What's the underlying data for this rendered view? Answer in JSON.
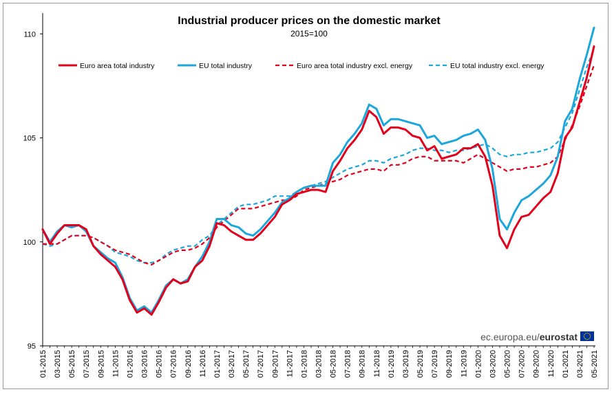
{
  "chart_data": {
    "type": "line",
    "title": "Industrial producer prices on the domestic market",
    "subtitle": "2015=100",
    "ylim": [
      95,
      111
    ],
    "yticks": [
      95,
      100,
      105,
      110
    ],
    "xtick_labels": [
      "01-2015",
      "03-2015",
      "05-2015",
      "07-2015",
      "09-2015",
      "11-2015",
      "01-2016",
      "03-2016",
      "05-2016",
      "07-2016",
      "09-2016",
      "11-2016",
      "01-2017",
      "03-2017",
      "05-2017",
      "07-2017",
      "09-2017",
      "11-2017",
      "01-2018",
      "03-2018",
      "05-2018",
      "07-2018",
      "09-2018",
      "11-2018",
      "01-2019",
      "03-2019",
      "05-2019",
      "07-2019",
      "09-2019",
      "11-2019",
      "01-2020",
      "03-2020",
      "05-2020",
      "07-2020",
      "09-2020",
      "11-2020",
      "01-2021",
      "03-2021",
      "05-2021"
    ],
    "x": [
      "01-2015",
      "02-2015",
      "03-2015",
      "04-2015",
      "05-2015",
      "06-2015",
      "07-2015",
      "08-2015",
      "09-2015",
      "10-2015",
      "11-2015",
      "12-2015",
      "01-2016",
      "02-2016",
      "03-2016",
      "04-2016",
      "05-2016",
      "06-2016",
      "07-2016",
      "08-2016",
      "09-2016",
      "10-2016",
      "11-2016",
      "12-2016",
      "01-2017",
      "02-2017",
      "03-2017",
      "04-2017",
      "05-2017",
      "06-2017",
      "07-2017",
      "08-2017",
      "09-2017",
      "10-2017",
      "11-2017",
      "12-2017",
      "01-2018",
      "02-2018",
      "03-2018",
      "04-2018",
      "05-2018",
      "06-2018",
      "07-2018",
      "08-2018",
      "09-2018",
      "10-2018",
      "11-2018",
      "12-2018",
      "01-2019",
      "02-2019",
      "03-2019",
      "04-2019",
      "05-2019",
      "06-2019",
      "07-2019",
      "08-2019",
      "09-2019",
      "10-2019",
      "11-2019",
      "12-2019",
      "01-2020",
      "02-2020",
      "03-2020",
      "04-2020",
      "05-2020",
      "06-2020",
      "07-2020",
      "08-2020",
      "09-2020",
      "10-2020",
      "11-2020",
      "12-2020",
      "01-2021",
      "02-2021",
      "03-2021",
      "04-2021",
      "05-2021"
    ],
    "grid": false,
    "legend_position": "top",
    "series": [
      {
        "name": "Euro area total industry",
        "color": "#e2001a",
        "style": "solid",
        "values": [
          100.6,
          99.9,
          100.4,
          100.8,
          100.8,
          100.8,
          100.6,
          99.8,
          99.4,
          99.1,
          98.8,
          98.2,
          97.2,
          96.6,
          96.8,
          96.5,
          97.1,
          97.8,
          98.2,
          98.0,
          98.1,
          98.8,
          99.1,
          99.8,
          100.9,
          100.8,
          100.5,
          100.3,
          100.1,
          100.1,
          100.4,
          100.8,
          101.2,
          101.8,
          102.0,
          102.3,
          102.4,
          102.5,
          102.5,
          102.4,
          103.4,
          103.9,
          104.5,
          104.9,
          105.4,
          106.3,
          106.0,
          105.2,
          105.5,
          105.5,
          105.4,
          105.1,
          105.0,
          104.4,
          104.6,
          104.0,
          104.1,
          104.2,
          104.5,
          104.5,
          104.7,
          104.1,
          102.7,
          100.3,
          99.7,
          100.6,
          101.2,
          101.3,
          101.7,
          102.1,
          102.4,
          103.3,
          105.0,
          105.5,
          106.7,
          107.9,
          109.4
        ]
      },
      {
        "name": "EU total industry",
        "color": "#1ba6dc",
        "style": "solid",
        "values": [
          100.6,
          100.0,
          100.5,
          100.8,
          100.7,
          100.8,
          100.5,
          99.8,
          99.5,
          99.2,
          99.0,
          98.3,
          97.3,
          96.7,
          96.9,
          96.6,
          97.2,
          97.9,
          98.2,
          98.0,
          98.2,
          98.8,
          99.3,
          100.0,
          101.1,
          101.1,
          100.8,
          100.7,
          100.4,
          100.3,
          100.6,
          101.0,
          101.4,
          101.9,
          102.1,
          102.4,
          102.6,
          102.7,
          102.7,
          102.7,
          103.8,
          104.2,
          104.8,
          105.2,
          105.7,
          106.6,
          106.4,
          105.6,
          105.9,
          105.9,
          105.8,
          105.7,
          105.6,
          105.0,
          105.1,
          104.7,
          104.8,
          104.9,
          105.1,
          105.2,
          105.4,
          104.9,
          103.5,
          101.1,
          100.6,
          101.4,
          102.0,
          102.2,
          102.5,
          102.8,
          103.2,
          104.1,
          105.8,
          106.4,
          107.8,
          109.0,
          110.3
        ]
      },
      {
        "name": "Euro area total industry excl. energy",
        "color": "#e2001a",
        "style": "dashed",
        "values": [
          99.9,
          99.9,
          99.9,
          100.1,
          100.3,
          100.3,
          100.3,
          100.2,
          100.0,
          99.8,
          99.6,
          99.5,
          99.4,
          99.2,
          99.0,
          98.9,
          99.1,
          99.3,
          99.5,
          99.6,
          99.6,
          99.7,
          99.9,
          100.2,
          100.7,
          101.0,
          101.3,
          101.6,
          101.6,
          101.6,
          101.7,
          101.8,
          101.9,
          102.0,
          102.0,
          102.2,
          102.5,
          102.6,
          102.7,
          102.8,
          102.9,
          103.0,
          103.2,
          103.3,
          103.4,
          103.5,
          103.5,
          103.4,
          103.7,
          103.7,
          103.8,
          104.0,
          104.1,
          104.1,
          103.9,
          103.9,
          103.9,
          103.9,
          103.8,
          104.0,
          104.2,
          104.0,
          103.8,
          103.6,
          103.4,
          103.5,
          103.5,
          103.6,
          103.6,
          103.7,
          103.8,
          104.1,
          104.9,
          105.6,
          106.5,
          107.5,
          108.5
        ]
      },
      {
        "name": "EU total industry excl. energy",
        "color": "#1ba6dc",
        "style": "dashed",
        "values": [
          99.9,
          99.8,
          99.9,
          100.1,
          100.3,
          100.3,
          100.3,
          100.2,
          100.0,
          99.8,
          99.5,
          99.4,
          99.3,
          99.1,
          99.0,
          99.0,
          99.1,
          99.4,
          99.6,
          99.7,
          99.8,
          99.8,
          100.1,
          100.3,
          100.8,
          101.1,
          101.4,
          101.7,
          101.8,
          101.8,
          101.9,
          102.0,
          102.2,
          102.2,
          102.2,
          102.4,
          102.6,
          102.7,
          102.8,
          102.9,
          103.1,
          103.3,
          103.5,
          103.6,
          103.7,
          103.9,
          103.9,
          103.8,
          104.0,
          104.1,
          104.2,
          104.4,
          104.5,
          104.5,
          104.4,
          104.4,
          104.3,
          104.4,
          104.4,
          104.5,
          104.6,
          104.7,
          104.5,
          104.2,
          104.1,
          104.2,
          104.2,
          104.3,
          104.3,
          104.4,
          104.5,
          104.8,
          105.5,
          106.2,
          107.3,
          108.4,
          109.3
        ]
      }
    ]
  },
  "credit": {
    "prefix": "ec.europa.eu/",
    "brand": "eurostat"
  },
  "colors": {
    "axis": "#000000",
    "eu_flag_blue": "#003399",
    "eu_flag_stars": "#ffcc00"
  }
}
